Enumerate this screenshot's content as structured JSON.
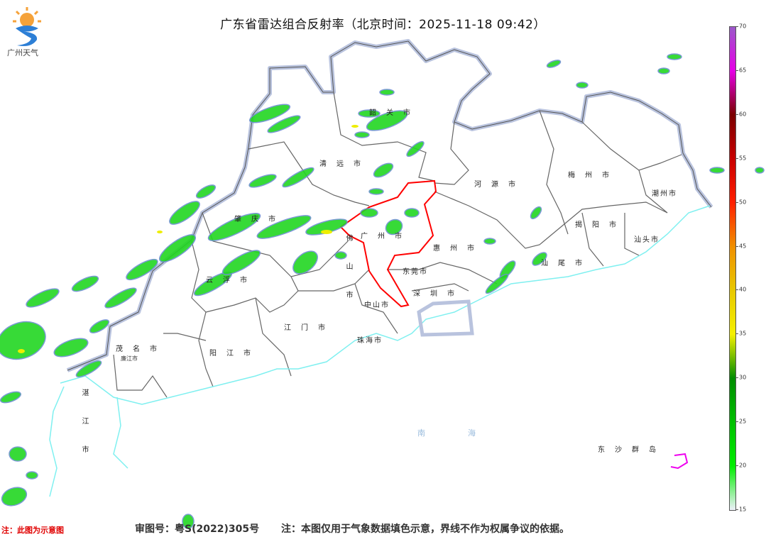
{
  "title": "广东省雷达组合反射率（北京时间：2025-11-18 09:42）",
  "logo": {
    "text": "广州天气"
  },
  "footer": {
    "review_number": "审图号：粤S(2022)305号",
    "disclaimer": "注：本图仅用于气象数据填色示意，界线不作为权属争议的依据。",
    "note": "注：此图为示意图"
  },
  "legend": {
    "ticks": [
      "70",
      "65",
      "60",
      "55",
      "50",
      "45",
      "40",
      "35",
      "30",
      "25",
      "20",
      "15"
    ],
    "colors": [
      "#9b59c9",
      "#e600e6",
      "#7a0000",
      "#c80000",
      "#ff2000",
      "#f09000",
      "#e8c800",
      "#f5f000",
      "#008c00",
      "#00c000",
      "#00ee00",
      "#eef0fa"
    ]
  },
  "map": {
    "cities": [
      {
        "name": "韶关市"
      },
      {
        "name": "清远市"
      },
      {
        "name": "河源市"
      },
      {
        "name": "梅州市"
      },
      {
        "name": "潮州市"
      },
      {
        "name": "揭阳市"
      },
      {
        "name": "汕头市"
      },
      {
        "name": "汕尾市"
      },
      {
        "name": "惠州市"
      },
      {
        "name": "广州市"
      },
      {
        "name": "东莞市"
      },
      {
        "name": "深圳市"
      },
      {
        "name": "佛山市"
      },
      {
        "name": "肇庆市"
      },
      {
        "name": "云浮市"
      },
      {
        "name": "江门市"
      },
      {
        "name": "中山市"
      },
      {
        "name": "珠海市"
      },
      {
        "name": "阳江市"
      },
      {
        "name": "茂名市"
      },
      {
        "name": "湛江市"
      },
      {
        "name": "廉江市"
      },
      {
        "name": "南海"
      },
      {
        "name": "东沙群岛"
      }
    ],
    "highlight_color": "#ff0000",
    "border_color": "#b9c3de",
    "coast_color": "#7ff0f0"
  }
}
